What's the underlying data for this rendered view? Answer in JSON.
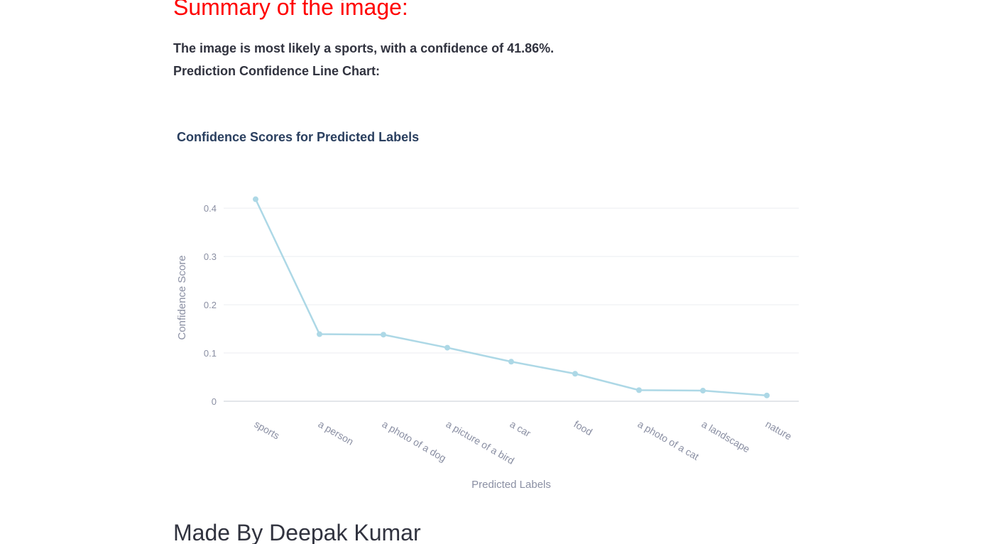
{
  "summary": {
    "heading": "Summary of the image:",
    "heading_color": "#ff0000",
    "text": "The image is most likely a sports, with a confidence of 41.86%.",
    "chart_caption": "Prediction Confidence Line Chart:"
  },
  "chart_data": {
    "type": "line",
    "title": "Confidence Scores for Predicted Labels",
    "xlabel": "Predicted Labels",
    "ylabel": "Confidence Score",
    "categories": [
      "sports",
      "a person",
      "a photo of a dog",
      "a picture of a bird",
      "a car",
      "food",
      "a photo of a cat",
      "a landscape",
      "nature"
    ],
    "values": [
      0.4186,
      0.139,
      0.138,
      0.111,
      0.082,
      0.057,
      0.023,
      0.022,
      0.012
    ],
    "yticks": [
      0,
      0.1,
      0.2,
      0.3,
      0.4
    ],
    "ytick_labels": [
      "0",
      "0.1",
      "0.2",
      "0.3",
      "0.4"
    ],
    "ylim": [
      0,
      0.44
    ],
    "grid": true,
    "line_color": "#add8e6"
  },
  "footer": {
    "heading": "Made By Deepak Kumar"
  }
}
